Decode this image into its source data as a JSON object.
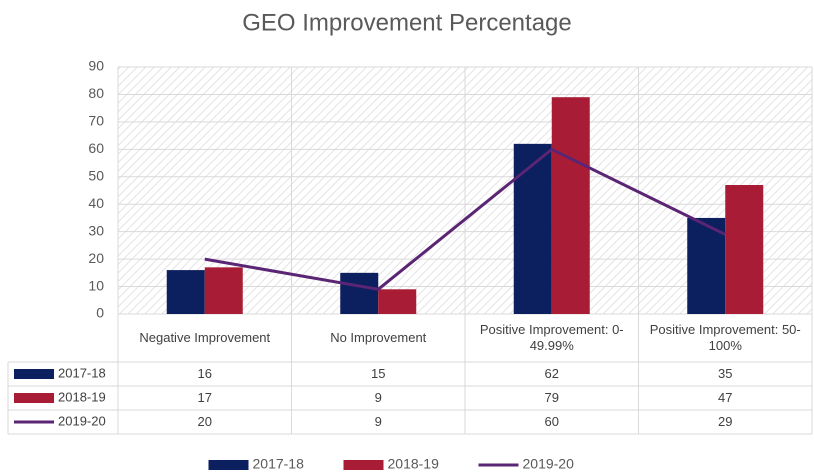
{
  "chart_data": {
    "type": "bar",
    "title": "GEO Improvement Percentage",
    "categories": [
      "Negative Improvement",
      "No Improvement",
      "Positive Improvement: 0-49.99%",
      "Positive Improvement: 50-100%"
    ],
    "series": [
      {
        "name": "2017-18",
        "type": "bar",
        "color": "#0c1f5e",
        "values": [
          16,
          15,
          62,
          35
        ]
      },
      {
        "name": "2018-19",
        "type": "bar",
        "color": "#a81d35",
        "values": [
          17,
          9,
          79,
          47
        ]
      },
      {
        "name": "2019-20",
        "type": "line",
        "color": "#5a2574",
        "values": [
          20,
          9,
          60,
          29
        ]
      }
    ],
    "ylim": [
      0,
      90
    ],
    "yticks": [
      0,
      10,
      20,
      30,
      40,
      50,
      60,
      70,
      80,
      90
    ],
    "grid": true,
    "legend": "bottom"
  }
}
